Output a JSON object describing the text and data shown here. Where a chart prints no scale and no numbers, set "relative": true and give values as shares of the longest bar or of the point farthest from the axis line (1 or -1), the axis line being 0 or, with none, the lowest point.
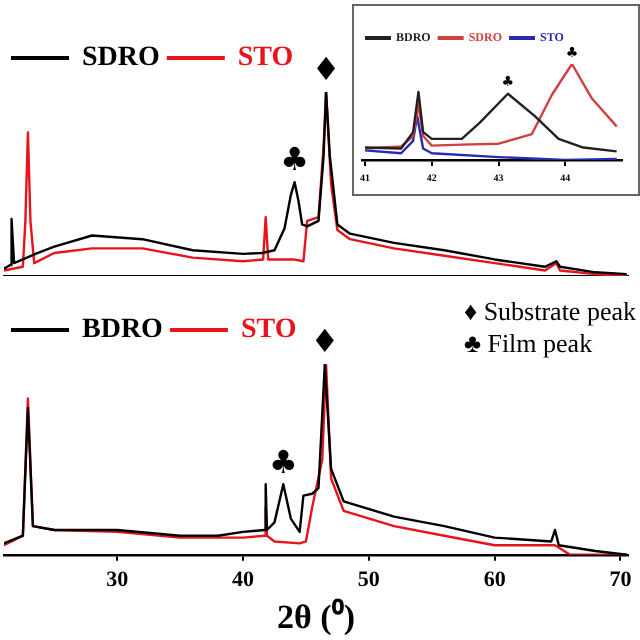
{
  "chart_data": [
    {
      "type": "line",
      "relative": true,
      "xlim": [
        21,
        70.6
      ],
      "tick_labels": false,
      "legend": "top left",
      "marker": "none",
      "series": [
        {
          "name": "SDRO",
          "color": "#000000",
          "x": [
            21.0,
            21.5,
            21.6,
            21.8,
            22.5,
            23.5,
            25,
            28,
            32,
            36,
            40,
            41.5,
            42.5,
            43.3,
            43.8,
            44.1,
            44.4,
            44.7,
            45.1,
            46.0,
            46.4,
            46.6,
            46.9,
            47.5,
            48.5,
            52,
            56,
            60,
            64,
            64.9,
            65.2,
            68,
            70.5
          ],
          "values": [
            0.04,
            0.06,
            0.31,
            0.07,
            0.09,
            0.12,
            0.16,
            0.22,
            0.2,
            0.14,
            0.12,
            0.125,
            0.14,
            0.26,
            0.44,
            0.51,
            0.41,
            0.28,
            0.27,
            0.3,
            0.65,
            1,
            0.65,
            0.28,
            0.23,
            0.18,
            0.14,
            0.09,
            0.05,
            0.08,
            0.05,
            0.02,
            0.01
          ]
        },
        {
          "name": "STO",
          "color": "#e8141c",
          "x": [
            21.0,
            22.5,
            22.7,
            22.9,
            23.1,
            23.4,
            25,
            28,
            32,
            36,
            40,
            41.6,
            41.8,
            42.0,
            44,
            44.8,
            45.1,
            46.0,
            46.4,
            46.6,
            47.0,
            47.5,
            48.5,
            52,
            56,
            60,
            64,
            64.9,
            65.2,
            68,
            70.5
          ],
          "values": [
            0.03,
            0.05,
            0.3,
            0.78,
            0.3,
            0.07,
            0.125,
            0.15,
            0.15,
            0.1,
            0.08,
            0.09,
            0.32,
            0.09,
            0.09,
            0.08,
            0.3,
            0.32,
            0.7,
            1,
            0.5,
            0.25,
            0.2,
            0.15,
            0.11,
            0.07,
            0.03,
            0.07,
            0.03,
            0.01,
            0
          ]
        }
      ],
      "annotations": [
        {
          "text": "♦",
          "x": 46.6,
          "y": 1
        },
        {
          "text": "♣",
          "x": 44.1,
          "y": 0.51
        }
      ]
    },
    {
      "type": "line",
      "relative": true,
      "xlim": [
        40.95,
        44.85
      ],
      "xticks": [
        41,
        42,
        43,
        44
      ],
      "tick_labels": "x",
      "legend": "top left",
      "marker": "none",
      "series": [
        {
          "name": "BDRO",
          "color": "#222222",
          "x": [
            41.0,
            41.54,
            41.72,
            41.8,
            41.87,
            42.0,
            42.45,
            42.72,
            43.14,
            43.54,
            43.9,
            44.27,
            44.77
          ],
          "values": [
            0.13,
            0.12,
            0.29,
            0.71,
            0.29,
            0.22,
            0.22,
            0.39,
            0.69,
            0.46,
            0.22,
            0.13,
            0.09
          ]
        },
        {
          "name": "SDRO",
          "color": "#d04040",
          "x": [
            41.0,
            41.54,
            41.72,
            41.8,
            41.87,
            42.0,
            42.45,
            43.0,
            43.5,
            43.8,
            44.1,
            44.4,
            44.77
          ],
          "values": [
            0.12,
            0.14,
            0.25,
            0.58,
            0.25,
            0.15,
            0.16,
            0.17,
            0.27,
            0.68,
            1,
            0.64,
            0.35
          ]
        },
        {
          "name": "STO",
          "color": "#2a2ab0",
          "x": [
            41.0,
            41.54,
            41.72,
            41.78,
            41.87,
            42.0,
            43.0,
            44.0,
            44.77
          ],
          "values": [
            0.1,
            0.07,
            0.2,
            0.46,
            0.12,
            0.07,
            0.03,
            0,
            0.01
          ]
        }
      ],
      "annotations": [
        {
          "text": "♣",
          "x": 43.14,
          "y": 0.69
        },
        {
          "text": "♣",
          "x": 44.1,
          "y": 1
        }
      ]
    },
    {
      "type": "line",
      "relative": true,
      "xlim": [
        21,
        70.6
      ],
      "xticks": [
        30,
        40,
        50,
        60,
        70
      ],
      "tick_labels": "x",
      "legend": "top left",
      "marker": "none",
      "xlabel": "2θ (⁰)",
      "series": [
        {
          "name": "BDRO",
          "color": "#000000",
          "x": [
            21.0,
            22.5,
            22.9,
            23.3,
            25,
            30,
            35,
            38,
            40,
            41.7,
            41.8,
            41.9,
            42.5,
            43.2,
            43.8,
            44.5,
            44.8,
            45.5,
            46.0,
            46.5,
            47.0,
            48,
            52,
            56,
            60,
            64.5,
            64.8,
            65.1,
            68,
            70.5
          ],
          "values": [
            0.06,
            0.1,
            0.77,
            0.15,
            0.13,
            0.13,
            0.1,
            0.1,
            0.12,
            0.13,
            0.37,
            0.13,
            0.17,
            0.37,
            0.19,
            0.12,
            0.31,
            0.32,
            0.35,
            1,
            0.45,
            0.28,
            0.2,
            0.15,
            0.09,
            0.07,
            0.13,
            0.05,
            0.02,
            0
          ]
        },
        {
          "name": "STO",
          "color": "#e8141c",
          "x": [
            21.0,
            22.5,
            22.9,
            23.3,
            25,
            30,
            35,
            40,
            41.7,
            41.8,
            41.9,
            42.5,
            44.5,
            45.0,
            45.5,
            46.3,
            46.6,
            47.0,
            48,
            52,
            56,
            60,
            64.8,
            66,
            70.5
          ],
          "values": [
            0.05,
            0.1,
            0.82,
            0.15,
            0.13,
            0.12,
            0.09,
            0.09,
            0.1,
            0.25,
            0.1,
            0.07,
            0.06,
            0.07,
            0.25,
            0.5,
            1,
            0.4,
            0.23,
            0.15,
            0.1,
            0.05,
            0.05,
            0,
            0
          ]
        }
      ],
      "annotations": [
        {
          "text": "♦",
          "x": 46.5,
          "y": 1
        },
        {
          "text": "♣",
          "x": 43.2,
          "y": 0.37
        },
        "♦ Substrate peak",
        "♣ Film peak"
      ]
    }
  ]
}
